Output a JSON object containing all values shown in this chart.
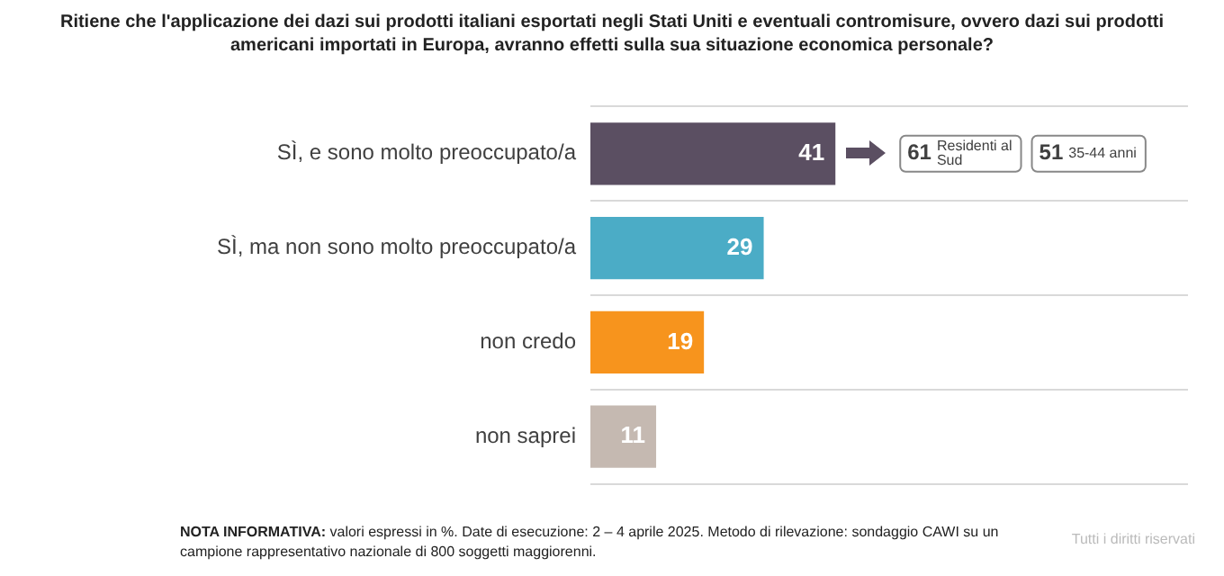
{
  "chart_data": {
    "type": "bar",
    "orientation": "horizontal",
    "title": "Ritiene che l'applicazione dei dazi sui prodotti italiani esportati negli Stati Uniti e eventuali contromisure, ovvero dazi sui prodotti americani importati in Europa, avranno effetti sulla sua situazione economica personale?",
    "categories": [
      "SÌ, e sono molto preoccupato/a",
      "SÌ, ma non sono molto preoccupato/a",
      "non credo",
      "non saprei"
    ],
    "values": [
      41,
      29,
      19,
      11
    ],
    "colors": [
      "#5b4f62",
      "#4bacc6",
      "#f7941d",
      "#c5b9b1"
    ],
    "xlim": [
      0,
      100
    ],
    "data_labels": true,
    "grid": "y",
    "legend": false,
    "tick_labels": "y",
    "annotations": [
      "61 Residenti al Sud",
      "51 35-44 anni",
      "NOTA INFORMATIVA: valori espressi in %. Date di esecuzione: 2 – 4 aprile 2025. Metodo di rilevazione: sondaggio CAWI su un campione rappresentativo nazionale di 800 soggetti maggiorenni.",
      "Tutti i diritti riservati"
    ]
  }
}
